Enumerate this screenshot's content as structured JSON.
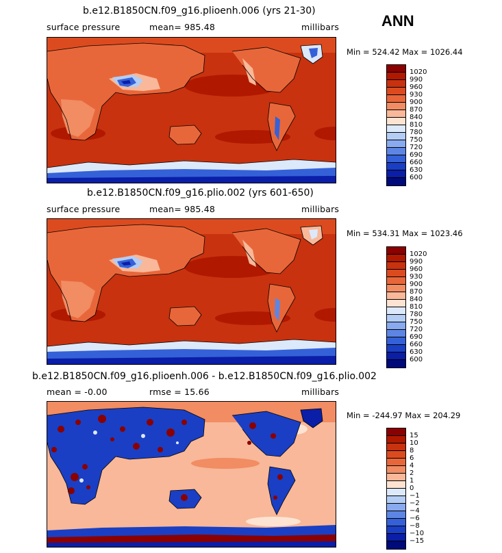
{
  "season": "ANN",
  "panels": [
    {
      "title": "b.e12.B1850CN.f09_g16.plioenh.006 (yrs 21-30)",
      "left_label": "surface pressure",
      "center_label": "mean=  985.48",
      "units": "millibars",
      "minmax": "Min = 524.42  Max = 1026.44",
      "colorbar": {
        "labels": [
          "1020",
          "990",
          "960",
          "930",
          "900",
          "870",
          "840",
          "810",
          "780",
          "750",
          "720",
          "690",
          "660",
          "630",
          "600"
        ],
        "colors": [
          "#8b0000",
          "#b01800",
          "#c8320f",
          "#dc4b1f",
          "#e8673a",
          "#f18c63",
          "#f8b899",
          "#fde3d2",
          "#dce9fb",
          "#b4cdf4",
          "#89aaee",
          "#5d86e4",
          "#3561d8",
          "#1a3fc4",
          "#0a1ea8",
          "#000a7a"
        ]
      }
    },
    {
      "title": "b.e12.B1850CN.f09_g16.plio.002 (yrs 601-650)",
      "left_label": "surface pressure",
      "center_label": "mean=  985.48",
      "units": "millibars",
      "minmax": "Min = 534.31  Max = 1023.46",
      "colorbar": {
        "labels": [
          "1020",
          "990",
          "960",
          "930",
          "900",
          "870",
          "840",
          "810",
          "780",
          "750",
          "720",
          "690",
          "660",
          "630",
          "600"
        ],
        "colors": [
          "#8b0000",
          "#b01800",
          "#c8320f",
          "#dc4b1f",
          "#e8673a",
          "#f18c63",
          "#f8b899",
          "#fde3d2",
          "#dce9fb",
          "#b4cdf4",
          "#89aaee",
          "#5d86e4",
          "#3561d8",
          "#1a3fc4",
          "#0a1ea8",
          "#000a7a"
        ]
      }
    },
    {
      "title": "b.e12.B1850CN.f09_g16.plioenh.006 - b.e12.B1850CN.f09_g16.plio.002",
      "left_label": "mean =   -0.00",
      "center_label": "rmse =   15.66",
      "units": "millibars",
      "minmax": "Min = -244.97  Max = 204.29",
      "colorbar": {
        "labels": [
          "15",
          "10",
          "8",
          "6",
          "4",
          "2",
          "1",
          "0",
          "−1",
          "−2",
          "−4",
          "−6",
          "−8",
          "−10",
          "−15"
        ],
        "colors": [
          "#8b0000",
          "#b01800",
          "#c8320f",
          "#dc4b1f",
          "#e8673a",
          "#f18c63",
          "#f8b899",
          "#fde3d2",
          "#dce9fb",
          "#b4cdf4",
          "#89aaee",
          "#5d86e4",
          "#3561d8",
          "#1a3fc4",
          "#0a1ea8",
          "#000a7a"
        ]
      }
    }
  ]
}
